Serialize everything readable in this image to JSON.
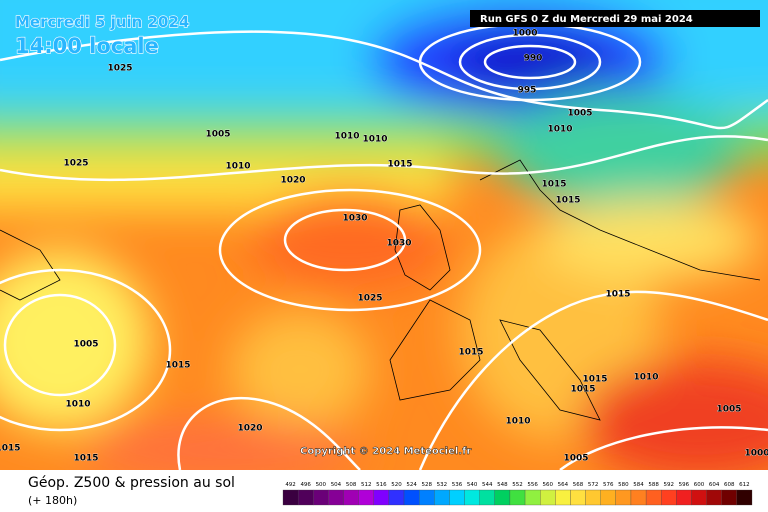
{
  "header": {
    "date": "Mercredi 5 juin 2024",
    "time": "14:00 locale",
    "run": "Run GFS 0 Z du Mercredi 29 mai 2024"
  },
  "isobar_labels": [
    "1025",
    "1000",
    "990",
    "995",
    "1005",
    "1010",
    "1005",
    "1010",
    "1010",
    "1025",
    "1010",
    "1015",
    "1020",
    "1015",
    "1015",
    "1030",
    "1030",
    "1015",
    "1025",
    "1005",
    "1015",
    "1015",
    "1015",
    "1010",
    "1015",
    "1010",
    "1005",
    "1020",
    "1010",
    "1015",
    "1015",
    "1005",
    "1000"
  ],
  "footer": {
    "title": "Géop. Z500 & pression au sol",
    "lead": "(+ 180h)",
    "copyright": "Copyright © 2024 Meteociel.fr"
  },
  "legend": {
    "values": [
      492,
      496,
      500,
      504,
      508,
      512,
      516,
      520,
      524,
      528,
      532,
      536,
      540,
      544,
      548,
      552,
      556,
      560,
      564,
      568,
      572,
      576,
      580,
      584,
      588,
      592,
      596,
      600,
      604,
      608,
      612
    ],
    "colors": [
      "#3a0040",
      "#50005a",
      "#6a0078",
      "#860096",
      "#a000b4",
      "#b000d8",
      "#8000ff",
      "#3030ff",
      "#0050ff",
      "#0080ff",
      "#00a8ff",
      "#00d0ff",
      "#00e8e0",
      "#00e0a0",
      "#00d060",
      "#40e040",
      "#90f040",
      "#d0f040",
      "#f8f040",
      "#ffe040",
      "#ffc830",
      "#ffb020",
      "#ff9820",
      "#ff8020",
      "#ff6020",
      "#ff4020",
      "#f02020",
      "#d01010",
      "#a00808",
      "#700000",
      "#300000"
    ]
  }
}
